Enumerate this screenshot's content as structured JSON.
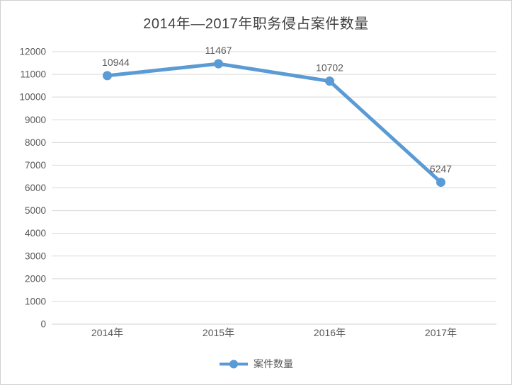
{
  "chart_data": {
    "type": "line",
    "title": "2014年—2017年职务侵占案件数量",
    "categories": [
      "2014年",
      "2015年",
      "2016年",
      "2017年"
    ],
    "series": [
      {
        "name": "案件数量",
        "values": [
          10944,
          11467,
          10702,
          6247
        ]
      }
    ],
    "data_labels": [
      "10944",
      "11467",
      "10702",
      "6247"
    ],
    "ylim": [
      0,
      12000
    ],
    "ytick_step": 1000,
    "ytick_labels": [
      "0",
      "1000",
      "2000",
      "3000",
      "4000",
      "5000",
      "6000",
      "7000",
      "8000",
      "9000",
      "10000",
      "11000",
      "12000"
    ],
    "grid": true,
    "legend_position": "bottom",
    "colors": {
      "line": "#5b9bd5",
      "marker": "#5b9bd5",
      "gridline": "#d9d9d9",
      "axis_line": "#d0d0d0",
      "tick_label": "#595959",
      "data_label": "#595959",
      "title": "#404040",
      "background": "#ffffff",
      "border": "#d0d0d0"
    }
  }
}
